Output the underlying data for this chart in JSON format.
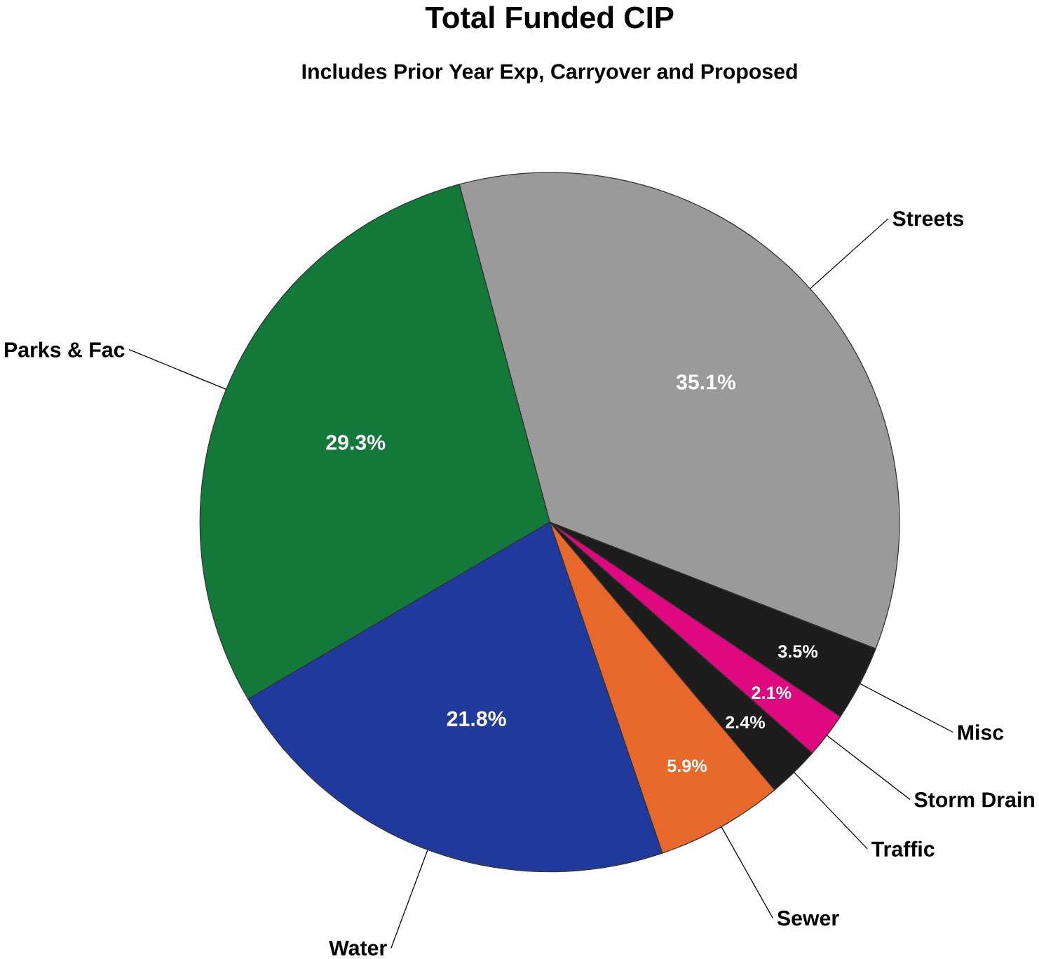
{
  "chart_data": {
    "type": "pie",
    "title": "Total Funded CIP",
    "subtitle": "Includes Prior Year Exp, Carryover and Proposed",
    "categories": [
      "Streets",
      "Misc",
      "Storm Drain",
      "Traffic",
      "Sewer",
      "Water",
      "Parks & Fac"
    ],
    "values": [
      35.1,
      3.5,
      2.1,
      2.4,
      5.9,
      21.8,
      29.3
    ],
    "value_labels": [
      "35.1%",
      "3.5%",
      "2.1%",
      "2.4%",
      "5.9%",
      "21.8%",
      "29.3%"
    ],
    "colors": [
      "#9a9a9a",
      "#1c1c1c",
      "#e0087e",
      "#1c1c1c",
      "#e8672a",
      "#1f3a9c",
      "#12793a"
    ]
  }
}
